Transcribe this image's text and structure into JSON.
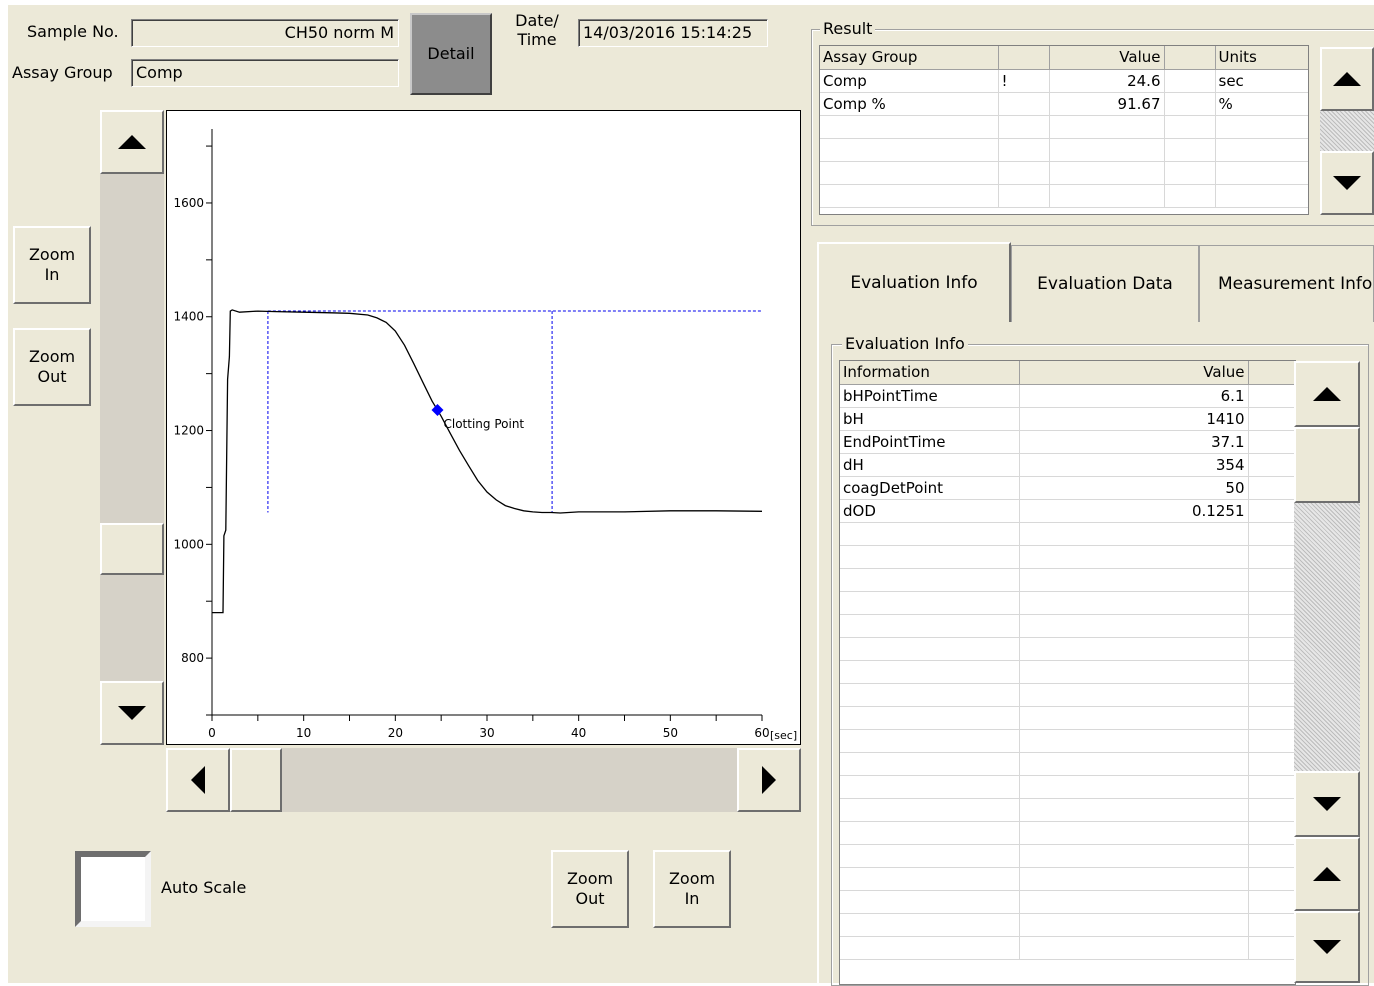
{
  "header": {
    "sample_label": "Sample No.",
    "sample_value": "CH50 norm M",
    "assay_label": "Assay Group",
    "assay_value": "Comp",
    "detail_button": "Detail",
    "date_label": "Date/\nTime",
    "date_value": "14/03/2016 15:14:25"
  },
  "left_controls": {
    "zoom_in": "Zoom\nIn",
    "zoom_out": "Zoom\nOut"
  },
  "bottom_controls": {
    "auto_scale_label": "Auto Scale",
    "auto_scale_checked": false,
    "zoom_out": "Zoom\nOut",
    "zoom_in": "Zoom\nIn"
  },
  "chart_data": {
    "type": "line",
    "x_unit": "[sec]",
    "xlim": [
      0,
      60
    ],
    "ylim": [
      700,
      1730
    ],
    "x_ticks": [
      0,
      10,
      20,
      30,
      40,
      50,
      60
    ],
    "y_ticks": [
      800,
      1000,
      1200,
      1400,
      1600
    ],
    "series": [
      {
        "x": [
          0,
          1.2,
          1.3,
          1.5,
          1.7,
          1.9,
          2.0,
          2.2,
          3,
          5,
          7,
          10,
          13,
          15,
          17,
          18,
          19,
          20,
          21,
          22,
          23,
          24,
          24.6,
          25,
          26,
          27,
          28,
          29,
          30,
          31,
          32,
          33,
          34,
          35,
          36,
          37,
          38,
          40,
          45,
          50,
          55,
          60
        ],
        "y": [
          880,
          880,
          1015,
          1025,
          1290,
          1330,
          1410,
          1412,
          1408,
          1410,
          1409,
          1408,
          1407,
          1406,
          1403,
          1398,
          1390,
          1375,
          1350,
          1318,
          1285,
          1252,
          1236,
          1225,
          1195,
          1165,
          1138,
          1112,
          1092,
          1078,
          1068,
          1063,
          1059,
          1057,
          1056,
          1056,
          1055,
          1057,
          1057,
          1059,
          1059,
          1058
        ]
      }
    ],
    "clotting_point": {
      "x": 24.6,
      "y": 1236,
      "label": "Clotting Point"
    },
    "baseline_level": 1410,
    "end_level": 1056,
    "bH_point_time": 6.1,
    "end_point_time": 37.1
  },
  "result": {
    "title": "Result",
    "columns": [
      "Assay Group",
      "",
      "Value",
      "",
      "Units"
    ],
    "rows": [
      [
        "Comp",
        "!",
        "24.6",
        "",
        "sec"
      ],
      [
        "Comp %",
        "",
        "91.67",
        "",
        "%"
      ]
    ]
  },
  "tabs": [
    {
      "label": "Evaluation Info",
      "active": true
    },
    {
      "label": "Evaluation Data",
      "active": false
    },
    {
      "label": "Measurement Info",
      "active": false
    }
  ],
  "evaluation": {
    "title": "Evaluation Info",
    "columns": [
      "Information",
      "Value"
    ],
    "rows": [
      [
        "bHPointTime",
        "6.1"
      ],
      [
        "bH",
        "1410"
      ],
      [
        "EndPointTime",
        "37.1"
      ],
      [
        "dH",
        "354"
      ],
      [
        "coagDetPoint",
        "50"
      ],
      [
        "dOD",
        "0.1251"
      ]
    ]
  }
}
